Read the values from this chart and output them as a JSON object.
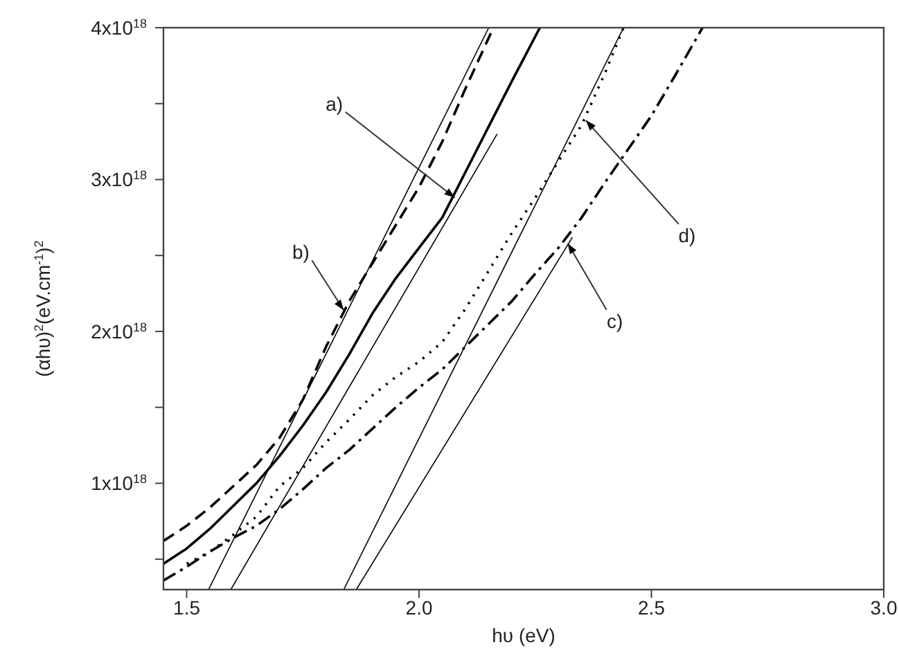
{
  "chart_data": {
    "type": "line",
    "xlabel": "hυ (eV)",
    "ylabel": "(αhυ)$^{2}$(eV.cm$^{-1}$)$^{2}$",
    "xlim": [
      1.45,
      3.0
    ],
    "xticks": [
      1.5,
      {
        "value": 2,
        "label": "2.0"
      },
      2.5,
      {
        "value": 3,
        "label": "3.0"
      }
    ],
    "ylim": [
      3e+17,
      4e+18
    ],
    "yticks": [
      {
        "value": 5e+17,
        "label": null
      },
      {
        "value": 1e+18,
        "label": "1x10$^{18}$"
      },
      {
        "value": 1.5e+18,
        "label": null
      },
      {
        "value": 2e+18,
        "label": "2x10$^{18}$"
      },
      {
        "value": 2.5e+18,
        "label": null
      },
      {
        "value": 3e+18,
        "label": "3x10$^{18}$"
      },
      {
        "value": 3.5e+18,
        "label": null
      },
      {
        "value": 4e+18,
        "label": "4x10$^{18}$"
      }
    ],
    "marker": "none",
    "series": [
      {
        "color": "#000000",
        "line_style": "solid",
        "x": [
          1.45,
          1.5,
          1.55,
          1.6,
          1.65,
          1.7,
          1.75,
          1.8,
          1.85,
          1.9,
          1.95,
          2.0,
          2.05,
          2.1,
          2.15,
          2.2,
          2.26
        ],
        "values": [
          4.7e+17,
          5.7e+17,
          7e+17,
          8.5e+17,
          1e+18,
          1.18e+18,
          1.38e+18,
          1.6e+18,
          1.85e+18,
          2.12e+18,
          2.35e+18,
          2.55e+18,
          2.75e+18,
          3.05e+18,
          3.35e+18,
          3.65e+18,
          4e+18
        ]
      },
      {
        "color": "#000000",
        "line_style": "dashed",
        "x": [
          1.45,
          1.5,
          1.55,
          1.6,
          1.65,
          1.7,
          1.75,
          1.8,
          1.85,
          1.9,
          1.95,
          2.0,
          2.05,
          2.1,
          2.16
        ],
        "values": [
          6.2e+17,
          7.2e+17,
          8.4e+17,
          9.8e+17,
          1.12e+18,
          1.3e+18,
          1.55e+18,
          1.9e+18,
          2.2e+18,
          2.45e+18,
          2.7e+18,
          2.95e+18,
          3.25e+18,
          3.6e+18,
          4e+18
        ]
      },
      {
        "color": "#000000",
        "line_style": "dashdot",
        "x": [
          1.45,
          1.5,
          1.55,
          1.6,
          1.65,
          1.7,
          1.75,
          1.8,
          1.85,
          1.9,
          1.95,
          2.0,
          2.05,
          2.1,
          2.15,
          2.2,
          2.25,
          2.3,
          2.35,
          2.4,
          2.45,
          2.5,
          2.55,
          2.61
        ],
        "values": [
          3.6e+17,
          4.5e+17,
          5.5e+17,
          6.4e+17,
          7.2e+17,
          8.3e+17,
          9.6e+17,
          1.1e+18,
          1.22e+18,
          1.36e+18,
          1.5e+18,
          1.63e+18,
          1.75e+18,
          1.9e+18,
          2.05e+18,
          2.2e+18,
          2.38e+18,
          2.55e+18,
          2.75e+18,
          2.98e+18,
          3.2e+18,
          3.42e+18,
          3.68e+18,
          4e+18
        ]
      },
      {
        "color": "#000000",
        "line_style": "dotted",
        "x": [
          1.5,
          1.55,
          1.6,
          1.65,
          1.7,
          1.75,
          1.8,
          1.85,
          1.9,
          1.95,
          2.0,
          2.05,
          2.1,
          2.15,
          2.2,
          2.25,
          2.3,
          2.35,
          2.4,
          2.44
        ],
        "values": [
          4.7e+17,
          5.5e+17,
          6.6e+17,
          7.8e+17,
          9.8e+17,
          1.1e+18,
          1.27e+18,
          1.42e+18,
          1.58e+18,
          1.7e+18,
          1.8e+18,
          1.93e+18,
          2.15e+18,
          2.4e+18,
          2.65e+18,
          2.88e+18,
          3.12e+18,
          3.36e+18,
          3.7e+18,
          4e+18
        ]
      },
      {
        "type": "line",
        "color": "#000000",
        "line_style": "solid",
        "x": [
          1.547,
          2.15
        ],
        "values": [
          3e+17,
          4e+18
        ]
      },
      {
        "type": "line",
        "color": "#000000",
        "line_style": "solid",
        "x": [
          1.595,
          2.168
        ],
        "values": [
          3e+17,
          3.3e+18
        ]
      },
      {
        "type": "line",
        "color": "#000000",
        "line_style": "solid",
        "x": [
          1.865,
          2.33
        ],
        "values": [
          3e+17,
          2.62e+18
        ]
      },
      {
        "type": "line",
        "color": "#000000",
        "line_style": "solid",
        "x": [
          1.838,
          2.44
        ],
        "values": [
          3e+17,
          4e+18
        ]
      }
    ],
    "annotations": [
      {
        "text": "a)",
        "x": 2.077,
        "y": 2.88e+18
      },
      {
        "text": "b)",
        "x": 1.838,
        "y": 2.14e+18
      },
      {
        "text": "d)",
        "x": 2.359,
        "y": 3.39e+18
      },
      {
        "text": "c)",
        "x": 2.32,
        "y": 2.58e+18
      }
    ]
  }
}
